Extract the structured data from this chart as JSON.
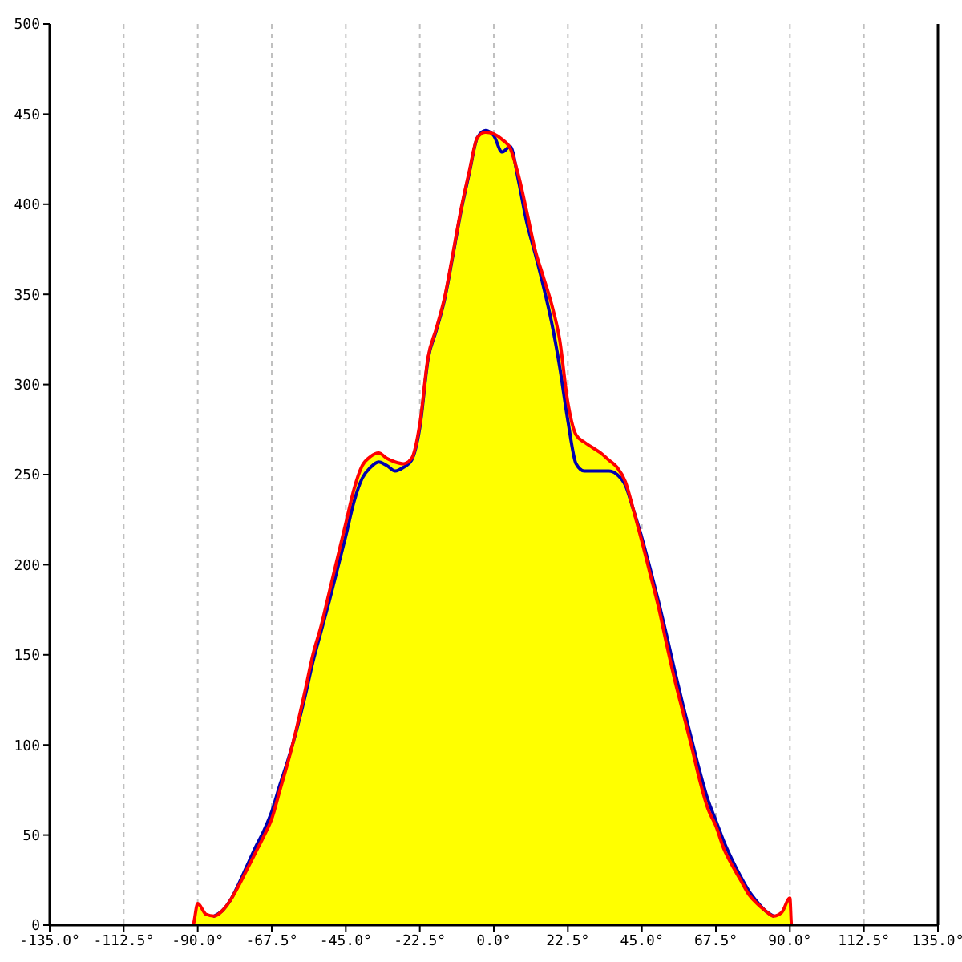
{
  "chart_data": {
    "type": "line",
    "x": [
      -135,
      -91.5,
      -90,
      -87.5,
      -85,
      -82.5,
      -80,
      -77.5,
      -75,
      -72.5,
      -70,
      -67.5,
      -65,
      -62.5,
      -60,
      -57.5,
      -55,
      -52.5,
      -50,
      -47.5,
      -45,
      -42.5,
      -40,
      -37.5,
      -35,
      -32.5,
      -30,
      -27.5,
      -25,
      -22.5,
      -20,
      -17.5,
      -15,
      -12.5,
      -10,
      -7.5,
      -5,
      -2.5,
      0,
      2.5,
      5,
      7.5,
      10,
      12.5,
      15,
      17.5,
      20,
      22.5,
      25,
      27.5,
      30,
      32.5,
      35,
      37.5,
      40,
      42.5,
      45,
      47.5,
      50,
      52.5,
      55,
      57.5,
      60,
      62.5,
      65,
      67.5,
      70,
      72.5,
      75,
      77.5,
      80,
      82.5,
      85,
      87.5,
      90,
      90.5,
      135
    ],
    "series": [
      {
        "color": "#0000b0",
        "values": [
          null,
          null,
          null,
          null,
          5,
          8,
          14,
          23,
          33,
          43,
          52,
          63,
          78,
          92,
          108,
          126,
          146,
          163,
          180,
          198,
          216,
          235,
          248,
          254,
          257,
          255,
          252,
          254,
          258,
          276,
          314,
          330,
          347,
          371,
          396,
          417,
          437,
          441,
          438,
          429,
          432,
          413,
          390,
          373,
          355,
          335,
          310,
          280,
          256,
          252,
          252,
          252,
          252,
          250,
          244,
          230,
          215,
          198,
          180,
          161,
          141,
          122,
          104,
          86,
          70,
          58,
          46,
          36,
          27,
          19,
          13,
          8,
          5,
          null,
          null,
          null,
          null
        ]
      },
      {
        "color": "#ff0000",
        "values": [
          0,
          0,
          12,
          6,
          5,
          8,
          14,
          22,
          31,
          40,
          49,
          59,
          75,
          91,
          109,
          129,
          150,
          166,
          185,
          204,
          223,
          242,
          255,
          260,
          262,
          259,
          257,
          256,
          259,
          278,
          315,
          331,
          348,
          372,
          397,
          418,
          437,
          440,
          439,
          436,
          431,
          416,
          396,
          375,
          360,
          345,
          325,
          290,
          272,
          268,
          265,
          262,
          258,
          254,
          246,
          230,
          213,
          195,
          177,
          156,
          136,
          118,
          100,
          81,
          65,
          55,
          42,
          33,
          25,
          17,
          12,
          8,
          5,
          7,
          15,
          0,
          0
        ]
      },
      {
        "type": "area",
        "color": "#ffff00",
        "x": [
          -91.5,
          -90,
          -87.5,
          -85,
          -82.5,
          -80,
          -77.5,
          -75,
          -72.5,
          -70,
          -67.5,
          -65,
          -62.5,
          -60,
          -57.5,
          -55,
          -52.5,
          -50,
          -47.5,
          -45,
          -42.5,
          -40,
          -37.5,
          -35,
          -32.5,
          -30,
          -27.5,
          -25,
          -22.5,
          -20,
          -17.5,
          -15,
          -12.5,
          -10,
          -7.5,
          -5,
          -2.5,
          0,
          2.5,
          5,
          7.5,
          10,
          12.5,
          15,
          17.5,
          20,
          22.5,
          25,
          27.5,
          30,
          32.5,
          35,
          37.5,
          40,
          42.5,
          45,
          47.5,
          50,
          52.5,
          55,
          57.5,
          60,
          62.5,
          65,
          67.5,
          70,
          72.5,
          75,
          77.5,
          80,
          82.5,
          85,
          87.5,
          90,
          90.5
        ],
        "values": [
          0,
          12,
          6,
          5,
          8,
          14,
          22,
          31,
          40,
          49,
          59,
          75,
          91,
          109,
          129,
          150,
          166,
          185,
          204,
          223,
          242,
          255,
          260,
          262,
          259,
          257,
          256,
          259,
          278,
          315,
          331,
          348,
          372,
          397,
          418,
          437,
          440,
          439,
          436,
          431,
          416,
          396,
          375,
          360,
          345,
          325,
          290,
          272,
          268,
          265,
          262,
          258,
          254,
          246,
          230,
          213,
          195,
          177,
          156,
          136,
          118,
          100,
          81,
          65,
          55,
          42,
          33,
          25,
          17,
          12,
          8,
          5,
          7,
          15,
          0
        ]
      }
    ],
    "xlim": [
      -135,
      135
    ],
    "xticks": [
      {
        "value": -135,
        "label": "-135.0°"
      },
      {
        "value": -112.5,
        "label": "-112.5°"
      },
      {
        "value": -90,
        "label": "-90.0°"
      },
      {
        "value": -67.5,
        "label": "-67.5°"
      },
      {
        "value": -45,
        "label": "-45.0°"
      },
      {
        "value": -22.5,
        "label": "-22.5°"
      },
      {
        "value": 0,
        "label": "0.0°"
      },
      {
        "value": 22.5,
        "label": "22.5°"
      },
      {
        "value": 45,
        "label": "45.0°"
      },
      {
        "value": 67.5,
        "label": "67.5°"
      },
      {
        "value": 90,
        "label": "90.0°"
      },
      {
        "value": 112.5,
        "label": "112.5°"
      },
      {
        "value": 135,
        "label": "135.0°"
      }
    ],
    "ylim": [
      0,
      500
    ],
    "yticks": [
      0,
      50,
      100,
      150,
      200,
      250,
      300,
      350,
      400,
      450,
      500
    ],
    "grid": true,
    "line_style": "solid"
  }
}
